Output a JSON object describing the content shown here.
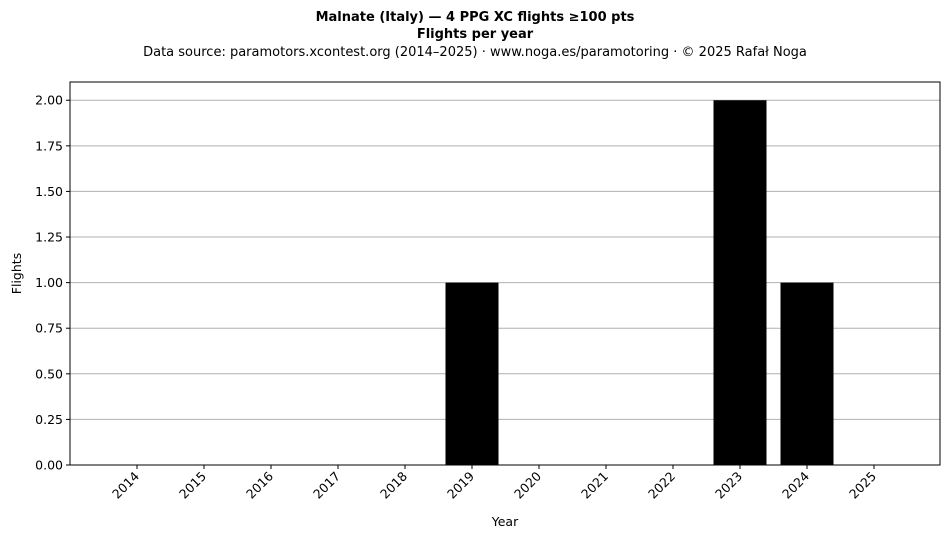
{
  "chart_data": {
    "type": "bar",
    "title": "Malnate (Italy)  —  4 PPG XC flights ≥100 pts",
    "title2": "Flights per year",
    "subtitle": "Data source: paramotors.xcontest.org (2014–2025)  ·  www.noga.es/paramotoring  ·  © 2025 Rafał Noga",
    "xlabel": "Year",
    "ylabel": "Flights",
    "categories": [
      "2014",
      "2015",
      "2016",
      "2017",
      "2018",
      "2019",
      "2020",
      "2021",
      "2022",
      "2023",
      "2024",
      "2025"
    ],
    "values": [
      0,
      0,
      0,
      0,
      0,
      1,
      0,
      0,
      0,
      2,
      1,
      0
    ],
    "ylim": [
      0,
      2.1
    ],
    "yticks": [
      "0.00",
      "0.25",
      "0.50",
      "0.75",
      "1.00",
      "1.25",
      "1.50",
      "1.75",
      "2.00"
    ],
    "grid": "y",
    "bar_color": "#000000",
    "grid_color": "#b0b0b0"
  }
}
